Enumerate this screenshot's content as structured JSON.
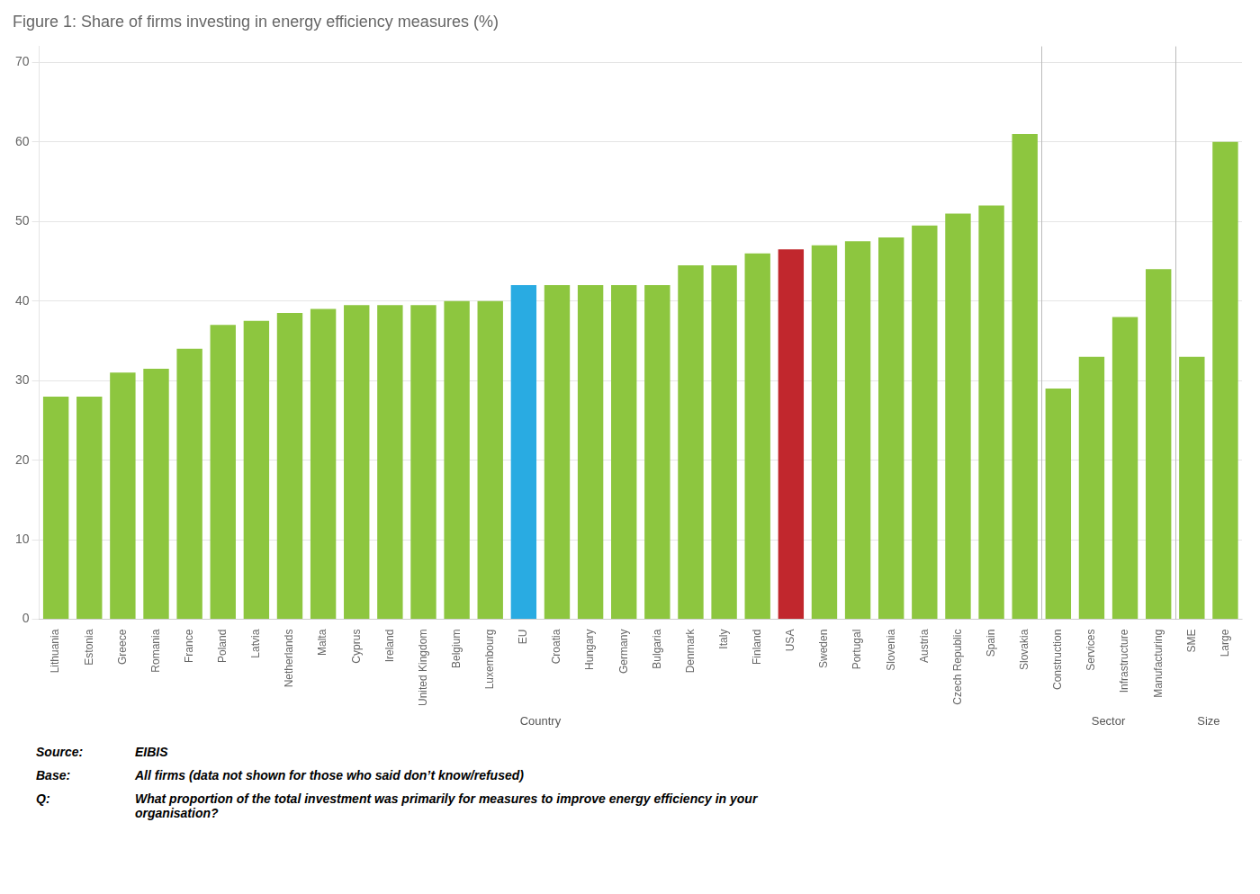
{
  "chart_data": {
    "type": "bar",
    "title": "Figure 1: Share of firms investing in energy efficiency measures (%)",
    "categories": [
      "Lithuania",
      "Estonia",
      "Greece",
      "Romania",
      "France",
      "Poland",
      "Latvia",
      "Netherlands",
      "Malta",
      "Cyprus",
      "Ireland",
      "United Kingdom",
      "Belgium",
      "Luxembourg",
      "EU",
      "Croatia",
      "Hungary",
      "Germany",
      "Bulgaria",
      "Denmark",
      "Italy",
      "Finland",
      "USA",
      "Sweden",
      "Portugal",
      "Slovenia",
      "Austria",
      "Czech Republic",
      "Spain",
      "Slovakia",
      "Construction",
      "Services",
      "Infrastructure",
      "Manufacturing",
      "SME",
      "Large"
    ],
    "values": [
      28,
      28,
      31,
      31.5,
      34,
      37,
      37.5,
      38.5,
      39,
      39.5,
      39.5,
      39.5,
      40,
      40,
      42,
      42,
      42,
      42,
      42,
      44.5,
      44.5,
      46,
      46.5,
      47,
      47.5,
      48,
      49.5,
      51,
      52,
      61,
      29,
      33,
      38,
      44,
      33,
      60
    ],
    "colors": [
      "#8DC63F",
      "#8DC63F",
      "#8DC63F",
      "#8DC63F",
      "#8DC63F",
      "#8DC63F",
      "#8DC63F",
      "#8DC63F",
      "#8DC63F",
      "#8DC63F",
      "#8DC63F",
      "#8DC63F",
      "#8DC63F",
      "#8DC63F",
      "#29ABE2",
      "#8DC63F",
      "#8DC63F",
      "#8DC63F",
      "#8DC63F",
      "#8DC63F",
      "#8DC63F",
      "#8DC63F",
      "#C1272D",
      "#8DC63F",
      "#8DC63F",
      "#8DC63F",
      "#8DC63F",
      "#8DC63F",
      "#8DC63F",
      "#8DC63F",
      "#8DC63F",
      "#8DC63F",
      "#8DC63F",
      "#8DC63F",
      "#8DC63F",
      "#8DC63F"
    ],
    "ylim": [
      0,
      72
    ],
    "yticks": [
      0,
      10,
      20,
      30,
      40,
      50,
      60,
      70
    ],
    "grid": true,
    "annotations": [
      {
        "text": "Country",
        "from": "Lithuania",
        "to": "Slovakia"
      },
      {
        "text": "Sector",
        "from": "Construction",
        "to": "Manufacturing"
      },
      {
        "text": "Size",
        "from": "SME",
        "to": "Large"
      }
    ],
    "footnotes": [
      [
        "Source:",
        [
          "EIBIS"
        ]
      ],
      [
        "Base:",
        [
          "All firms (data not shown for those who said don’t know/refused)"
        ]
      ],
      [
        "Q:",
        [
          "What proportion of the total investment was primarily for measures to improve energy efficiency in your",
          "organisation?"
        ]
      ]
    ]
  }
}
